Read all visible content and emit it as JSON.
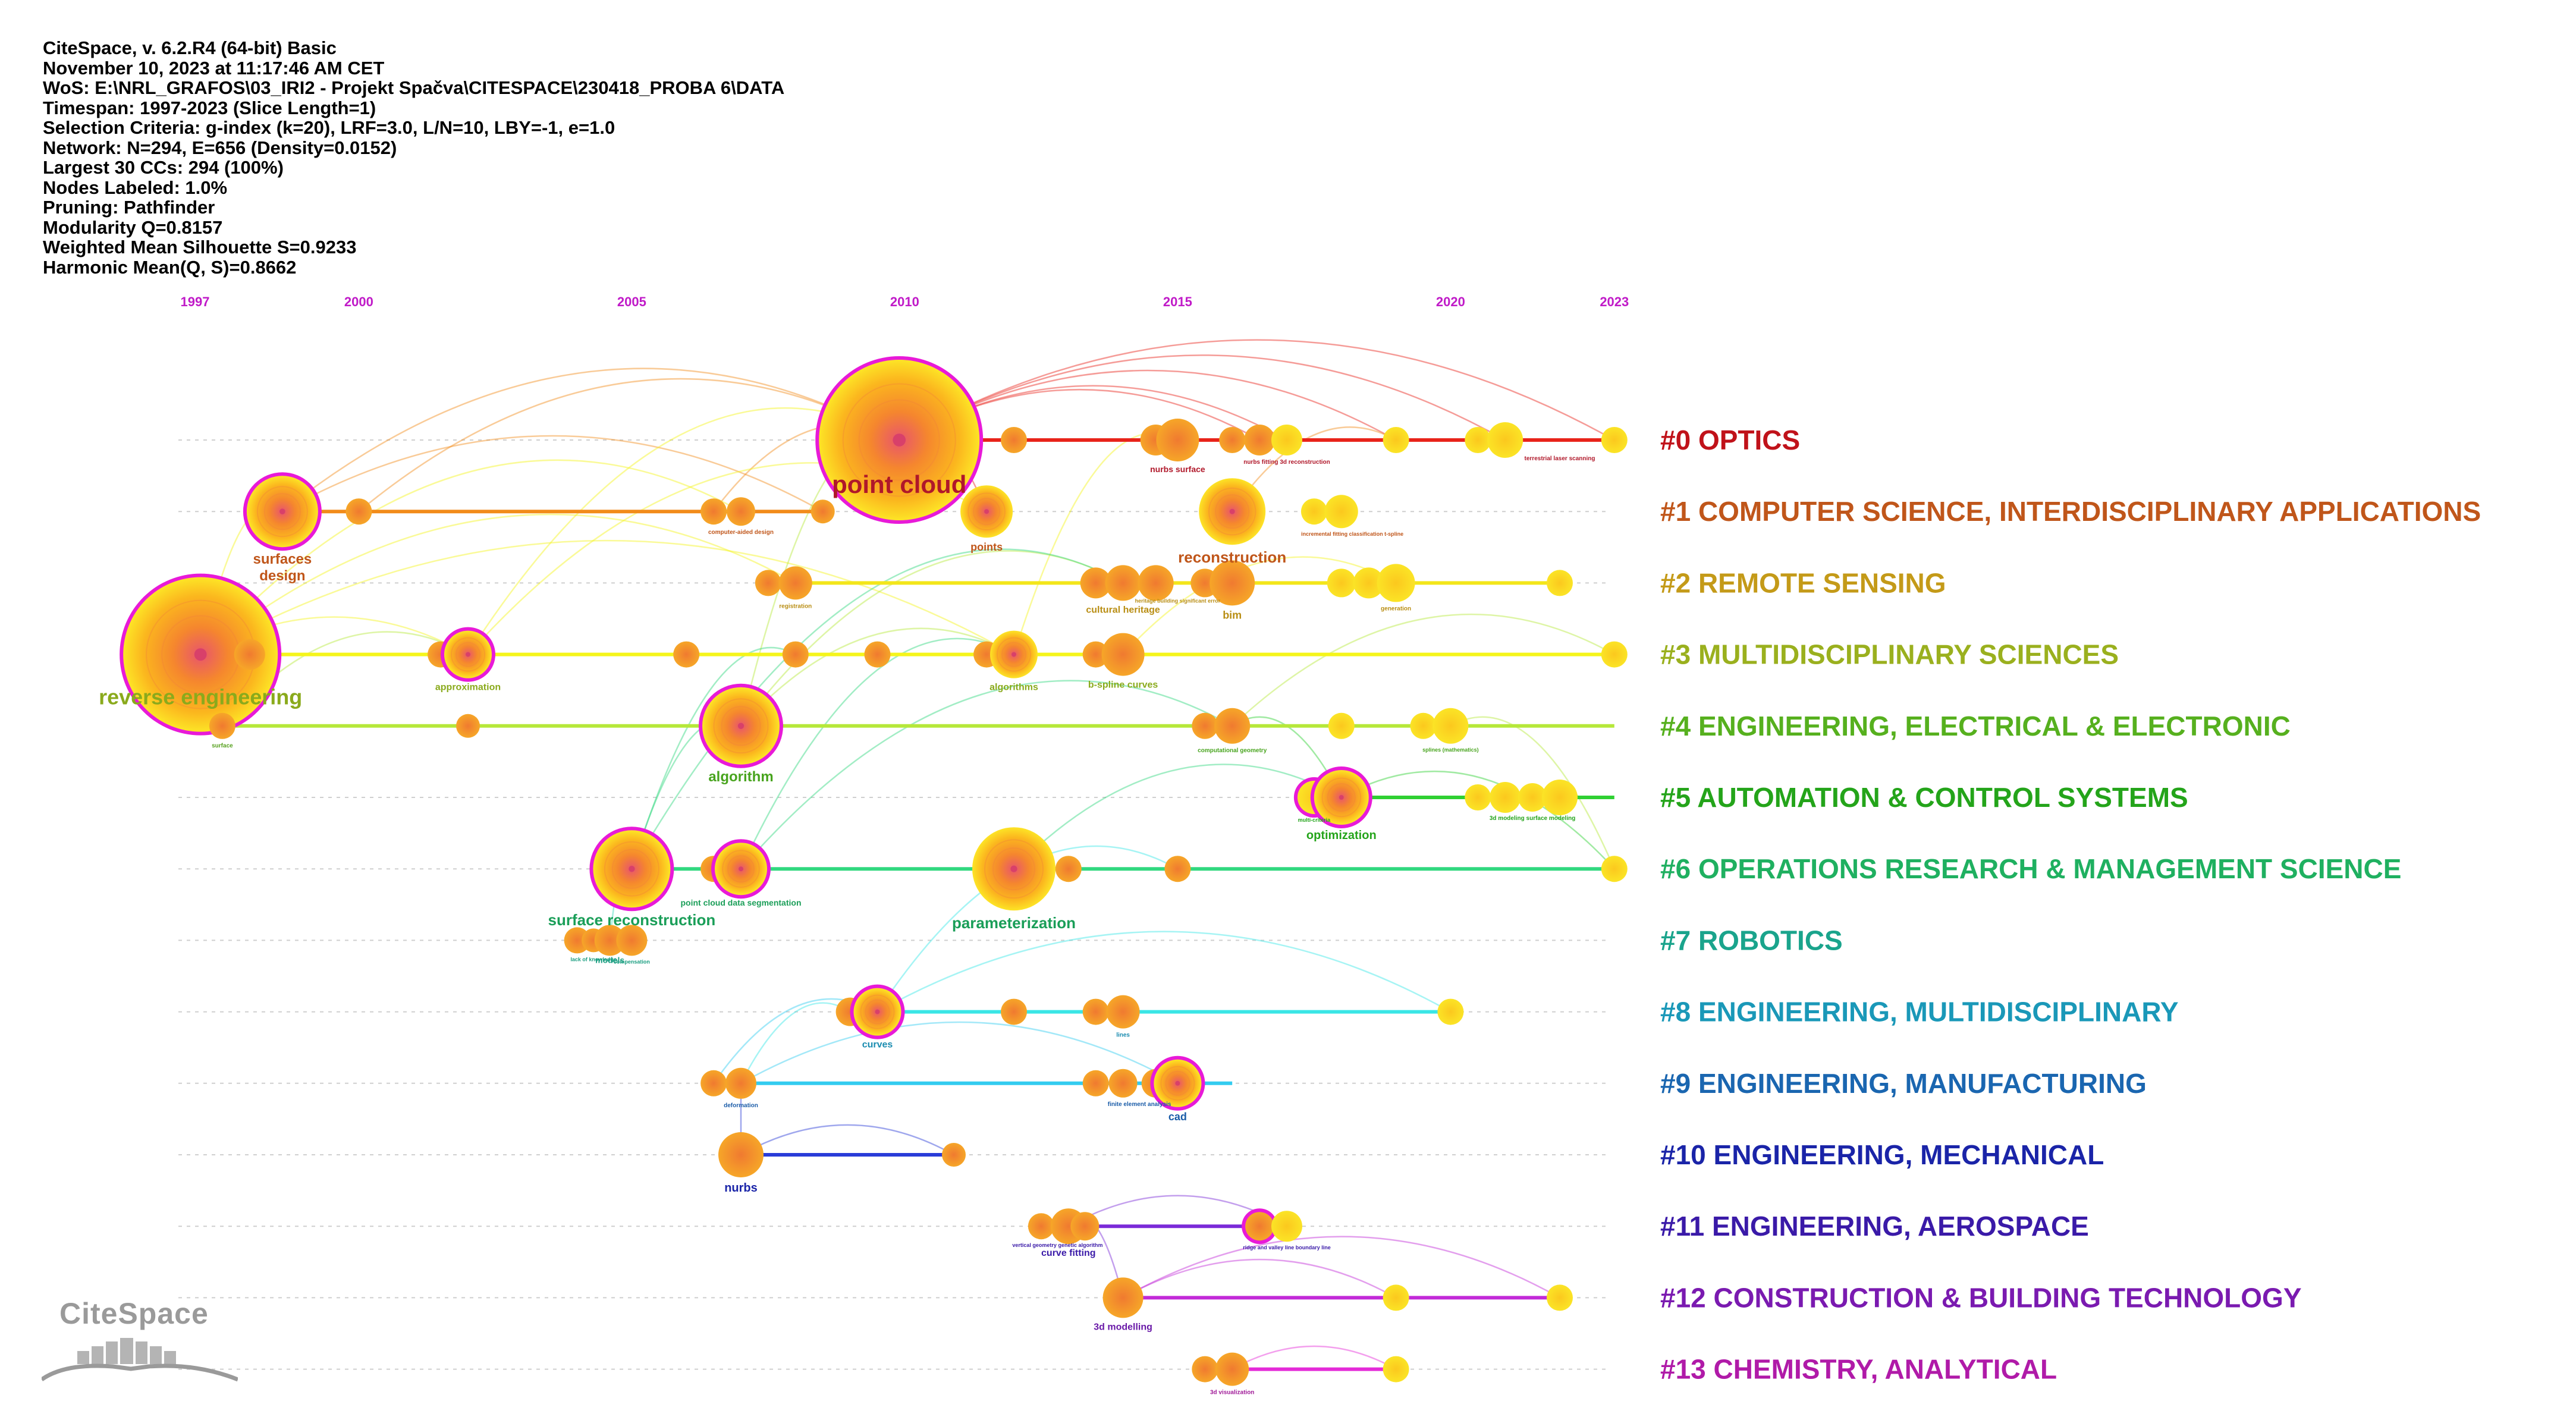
{
  "meta": [
    "CiteSpace, v. 6.2.R4 (64-bit) Basic",
    "November 10, 2023 at 11:17:46 AM CET",
    "WoS: E:\\NRL_GRAFOS\\03_IRI2 - Projekt Spačva\\CITESPACE\\230418_PROBA 6\\DATA",
    "Timespan: 1997-2023 (Slice Length=1)",
    "Selection Criteria: g-index (k=20), LRF=3.0, L/N=10, LBY=-1, e=1.0",
    "Network: N=294, E=656 (Density=0.0152)",
    "Largest 30 CCs: 294 (100%)",
    "Nodes Labeled: 1.0%",
    "Pruning: Pathfinder",
    "Modularity Q=0.8157",
    "Weighted Mean Silhouette S=0.9233",
    "Harmonic Mean(Q, S)=0.8662"
  ],
  "years": [
    "1997",
    "2000",
    "2005",
    "2010",
    "2015",
    "2020",
    "2023"
  ],
  "logo_text": "CiteSpace",
  "clusters": [
    {
      "label": "#0 OPTICS",
      "color": "#c0121a",
      "line": "#e8231a",
      "start": 2009.9,
      "end": 2023,
      "nodes": [
        [
          2009.9,
          135,
          "ring"
        ],
        [
          2012,
          22
        ],
        [
          2014.6,
          26
        ],
        [
          2015,
          36
        ],
        [
          2016,
          22
        ],
        [
          2016.5,
          26
        ],
        [
          2017,
          26
        ],
        [
          2019,
          22
        ],
        [
          2020.5,
          22
        ],
        [
          2021,
          30
        ],
        [
          2023,
          22
        ]
      ],
      "labels": [
        [
          2009.9,
          "point cloud",
          42,
          "#b0182a",
          true
        ],
        [
          2015,
          "nurbs surface",
          14,
          "#b0182a",
          false
        ],
        [
          2017,
          "nurbs fitting 3d reconstruction",
          10,
          "#b0182a",
          false
        ],
        [
          2022,
          "terrestrial laser scanning",
          10,
          "#b0182a",
          false
        ]
      ]
    },
    {
      "label": "#1 COMPUTER SCIENCE, INTERDISCIPLINARY APPLICATIONS",
      "color": "#c0561a",
      "line": "#f28c1a",
      "start": 1998.2,
      "end": 2008.5,
      "nodes": [
        [
          1998.6,
          60,
          "ring"
        ],
        [
          2000,
          22
        ],
        [
          2006.5,
          22
        ],
        [
          2007,
          24
        ],
        [
          2008.5,
          20
        ],
        [
          2011.5,
          44
        ],
        [
          2016,
          56
        ],
        [
          2017.5,
          22
        ],
        [
          2018,
          28
        ]
      ],
      "labels": [
        [
          1998.6,
          "surfaces",
          24,
          "#c0561a",
          false
        ],
        [
          1998.6,
          "design",
          24,
          "#c0561a",
          false
        ],
        [
          2007,
          "computer-aided design",
          10,
          "#c0561a",
          false
        ],
        [
          2011.5,
          "points",
          18,
          "#c0561a",
          false
        ],
        [
          2016,
          "reconstruction",
          26,
          "#c0561a",
          false
        ],
        [
          2018.2,
          "incremental fitting classification t-spline",
          9,
          "#c0561a",
          false
        ]
      ]
    },
    {
      "label": "#2 REMOTE SENSING",
      "color": "#c49a18",
      "line": "#f3e61a",
      "start": 2007.5,
      "end": 2022,
      "nodes": [
        [
          2007.5,
          22
        ],
        [
          2008,
          28
        ],
        [
          2013.5,
          26
        ],
        [
          2014,
          30
        ],
        [
          2014.6,
          30
        ],
        [
          2015.5,
          24
        ],
        [
          2016,
          38
        ],
        [
          2018,
          24
        ],
        [
          2018.5,
          26
        ],
        [
          2019,
          32
        ],
        [
          2022,
          22
        ]
      ],
      "labels": [
        [
          2008,
          "registration",
          10,
          "#b98e14",
          false
        ],
        [
          2014,
          "cultural heritage",
          16,
          "#b98e14",
          false
        ],
        [
          2016,
          "bim",
          18,
          "#b98e14",
          false
        ],
        [
          2015,
          "heritage building significant error",
          9,
          "#b98e14",
          false
        ],
        [
          2019,
          "generation",
          10,
          "#b98e14",
          false
        ]
      ]
    },
    {
      "label": "#3 MULTIDISCIPLINARY SCIENCES",
      "color": "#9ab01e",
      "line": "#f5f51a",
      "start": 1997.1,
      "end": 2023,
      "nodes": [
        [
          1997.1,
          130,
          "ring"
        ],
        [
          1998,
          26
        ],
        [
          2001.5,
          22
        ],
        [
          2002,
          40,
          "ring"
        ],
        [
          2006,
          22
        ],
        [
          2008,
          22
        ],
        [
          2009.5,
          22
        ],
        [
          2011.5,
          22
        ],
        [
          2012,
          40
        ],
        [
          2013.5,
          22
        ],
        [
          2014,
          36
        ],
        [
          2023,
          22
        ]
      ],
      "labels": [
        [
          1997.1,
          "reverse engineering",
          36,
          "#8aaa1c",
          true
        ],
        [
          2002,
          "approximation",
          16,
          "#8aaa1c",
          false
        ],
        [
          2012,
          "algorithms",
          16,
          "#8aaa1c",
          false
        ],
        [
          2014,
          "b-spline curves",
          16,
          "#8aaa1c",
          false
        ]
      ]
    },
    {
      "label": "#4 ENGINEERING, ELECTRICAL & ELECTRONIC",
      "color": "#56b01e",
      "line": "#b6e83a",
      "start": 1997.5,
      "end": 2023,
      "nodes": [
        [
          1997.5,
          22
        ],
        [
          2002,
          20
        ],
        [
          2007,
          65,
          "ring"
        ],
        [
          2015.5,
          22
        ],
        [
          2016,
          30
        ],
        [
          2018,
          22
        ],
        [
          2019.5,
          22
        ],
        [
          2020,
          30
        ]
      ],
      "labels": [
        [
          1997.5,
          "surface",
          10,
          "#56a01e",
          false
        ],
        [
          2007,
          "algorithm",
          24,
          "#48a41e",
          false
        ],
        [
          2016,
          "computational geometry",
          10,
          "#48a41e",
          false
        ],
        [
          2020,
          "splines (mathematics)",
          9,
          "#48a41e",
          false
        ]
      ]
    },
    {
      "label": "#5 AUTOMATION & CONTROL SYSTEMS",
      "color": "#24a41a",
      "line": "#2fd033",
      "start": 2017.5,
      "end": 2023,
      "nodes": [
        [
          2017.5,
          28,
          "ring"
        ],
        [
          2018,
          46,
          "ring"
        ],
        [
          2020.5,
          22
        ],
        [
          2021,
          26
        ],
        [
          2021.5,
          24
        ],
        [
          2022,
          30
        ]
      ],
      "labels": [
        [
          2018,
          "optimization",
          20,
          "#24a41a",
          false
        ],
        [
          2017.5,
          "multi-criteria",
          9,
          "#24a41a",
          false
        ],
        [
          2021.5,
          "3d modeling surface modeling",
          10,
          "#24a41a",
          false
        ]
      ]
    },
    {
      "label": "#6 OPERATIONS RESEARCH & MANAGEMENT SCIENCE",
      "color": "#1fb060",
      "line": "#31d87f",
      "start": 2005,
      "end": 2023,
      "nodes": [
        [
          2005,
          65,
          "ring"
        ],
        [
          2006.5,
          22
        ],
        [
          2007,
          44,
          "ring"
        ],
        [
          2012,
          70
        ],
        [
          2013,
          22
        ],
        [
          2015,
          22
        ],
        [
          2023,
          22
        ]
      ],
      "labels": [
        [
          2005,
          "surface reconstruction",
          26,
          "#1a9e58",
          false
        ],
        [
          2012,
          "parameterization",
          26,
          "#1a9e58",
          false
        ],
        [
          2007,
          "point cloud data segmentation",
          14,
          "#1a9e58",
          false
        ]
      ]
    },
    {
      "label": "#7 ROBOTICS",
      "color": "#1aa48c",
      "line": "#34d8bb",
      "start": 2004,
      "end": 2005,
      "nodes": [
        [
          2004,
          22
        ],
        [
          2004.3,
          20
        ],
        [
          2004.6,
          26
        ],
        [
          2005,
          26
        ]
      ],
      "labels": [
        [
          2004.6,
          "models",
          14,
          "#1a9e80",
          false
        ],
        [
          2005,
          "compensation",
          9,
          "#1a9e80",
          false
        ],
        [
          2004.3,
          "lack of knowledge",
          9,
          "#1a9e80",
          false
        ]
      ]
    },
    {
      "label": "#8 ENGINEERING, MULTIDISCIPLINARY",
      "color": "#1a98b8",
      "line": "#3ae6e6",
      "start": 2009,
      "end": 2020,
      "nodes": [
        [
          2009,
          24
        ],
        [
          2009.5,
          40,
          "ring"
        ],
        [
          2012,
          22
        ],
        [
          2013.5,
          22
        ],
        [
          2014,
          28
        ],
        [
          2020,
          22
        ]
      ],
      "labels": [
        [
          2009.5,
          "curves",
          16,
          "#1a8cb0",
          false
        ],
        [
          2014,
          "lines",
          10,
          "#1a8cb0",
          false
        ]
      ]
    },
    {
      "label": "#9 ENGINEERING, MANUFACTURING",
      "color": "#1a66b0",
      "line": "#33ccf0",
      "start": 2006.5,
      "end": 2016,
      "nodes": [
        [
          2006.5,
          22
        ],
        [
          2007,
          26
        ],
        [
          2013.5,
          22
        ],
        [
          2014,
          24
        ],
        [
          2014.6,
          24
        ],
        [
          2015,
          40,
          "ring"
        ]
      ],
      "labels": [
        [
          2007,
          "deformation",
          10,
          "#1a5ca8",
          false
        ],
        [
          2014.3,
          "finite element analysis",
          10,
          "#1a5ca8",
          false
        ],
        [
          2015,
          "cad",
          18,
          "#1a5ca8",
          false
        ]
      ]
    },
    {
      "label": "#10 ENGINEERING, MECHANICAL",
      "color": "#1a24a8",
      "line": "#2a3cd8",
      "start": 2007,
      "end": 2011,
      "nodes": [
        [
          2007,
          38
        ],
        [
          2010.9,
          20
        ]
      ],
      "labels": [
        [
          2007,
          "nurbs",
          20,
          "#1a24a8",
          false
        ]
      ]
    },
    {
      "label": "#11 ENGINEERING, AEROSPACE",
      "color": "#3a1aa8",
      "line": "#7a2ad8",
      "start": 2012.5,
      "end": 2017,
      "nodes": [
        [
          2012.5,
          22
        ],
        [
          2013,
          30
        ],
        [
          2013.3,
          24
        ],
        [
          2016.5,
          24,
          "ring"
        ],
        [
          2017,
          26
        ]
      ],
      "labels": [
        [
          2013,
          "curve fitting",
          16,
          "#3a1aa8",
          false
        ],
        [
          2012.8,
          "vertical geometry genetic algorithm",
          9,
          "#3a1aa8",
          false
        ],
        [
          2017,
          "ridge and valley line boundary line",
          9,
          "#3a1aa8",
          false
        ]
      ]
    },
    {
      "label": "#12 CONSTRUCTION & BUILDING TECHNOLOGY",
      "color": "#7a1ab0",
      "line": "#c22ad8",
      "start": 2014,
      "end": 2022,
      "nodes": [
        [
          2014,
          34
        ],
        [
          2019,
          22
        ],
        [
          2022,
          22
        ]
      ],
      "labels": [
        [
          2014,
          "3d modelling",
          16,
          "#6a1aa8",
          false
        ]
      ]
    },
    {
      "label": "#13 CHEMISTRY, ANALYTICAL",
      "color": "#b01aa8",
      "line": "#e42ad8",
      "start": 2015.5,
      "end": 2019,
      "nodes": [
        [
          2015.5,
          22
        ],
        [
          2016,
          28
        ],
        [
          2019,
          22
        ]
      ],
      "labels": [
        [
          2016,
          "3d visualization",
          10,
          "#a01a98",
          false
        ]
      ]
    }
  ],
  "links": [
    [
      0,
      2009.9,
      0,
      2023
    ],
    [
      0,
      2009.9,
      0,
      2019
    ],
    [
      0,
      2009.9,
      0,
      2016.5
    ],
    [
      0,
      2009.9,
      0,
      2021
    ],
    [
      0,
      2009.9,
      1,
      2011.5
    ],
    [
      0,
      2009.9,
      0,
      2017
    ],
    [
      1,
      1998.6,
      0,
      2009.9
    ],
    [
      1,
      1998.6,
      1,
      2008.5
    ],
    [
      1,
      2000,
      0,
      2009.9
    ],
    [
      1,
      2006.5,
      0,
      2009.9
    ],
    [
      1,
      2016,
      0,
      2019
    ],
    [
      3,
      1997.1,
      1,
      1998.6
    ],
    [
      3,
      1997.1,
      3,
      2002
    ],
    [
      3,
      1997.1,
      3,
      2012
    ],
    [
      3,
      1997.1,
      1,
      2007
    ],
    [
      3,
      2002,
      1,
      2011.5
    ],
    [
      3,
      2002,
      0,
      2009.9
    ],
    [
      3,
      1997.1,
      2,
      2008
    ],
    [
      3,
      2012,
      0,
      2015
    ],
    [
      3,
      2014,
      2,
      2019
    ],
    [
      4,
      2007,
      3,
      2012
    ],
    [
      4,
      2007,
      2,
      2014
    ],
    [
      4,
      2007,
      0,
      2009.9
    ],
    [
      4,
      1997.5,
      3,
      2002
    ],
    [
      4,
      2016,
      3,
      2023
    ],
    [
      4,
      2020,
      6,
      2023
    ],
    [
      5,
      2018,
      4,
      2016
    ],
    [
      5,
      2018,
      6,
      2023
    ],
    [
      6,
      2005,
      3,
      2008
    ],
    [
      6,
      2005,
      4,
      2007
    ],
    [
      6,
      2007,
      3,
      2012
    ],
    [
      6,
      2012,
      5,
      2018
    ],
    [
      6,
      2005,
      2,
      2014
    ],
    [
      6,
      2007,
      4,
      2016
    ],
    [
      7,
      2004.6,
      6,
      2005
    ],
    [
      8,
      2009.5,
      8,
      2020
    ],
    [
      8,
      2009.5,
      6,
      2015
    ],
    [
      8,
      2009,
      9,
      2007
    ],
    [
      9,
      2007,
      9,
      2015
    ],
    [
      9,
      2006.5,
      8,
      2009.5
    ],
    [
      10,
      2007,
      10,
      2010.9
    ],
    [
      10,
      2007,
      9,
      2007
    ],
    [
      11,
      2013,
      11,
      2017
    ],
    [
      11,
      2013,
      12,
      2014
    ],
    [
      12,
      2014,
      12,
      2022
    ],
    [
      12,
      2014,
      12,
      2019
    ],
    [
      13,
      2016,
      13,
      2019
    ]
  ]
}
